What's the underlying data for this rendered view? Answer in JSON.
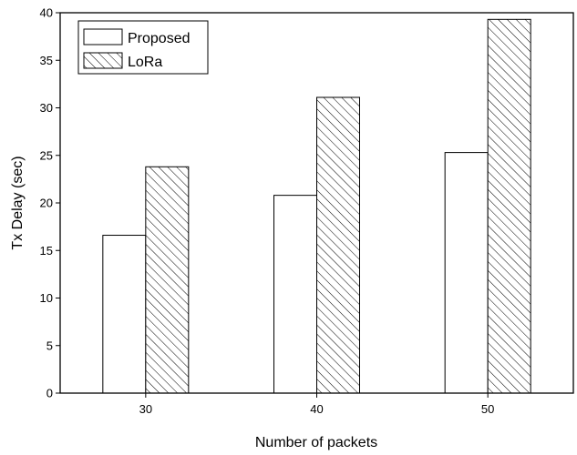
{
  "chart_data": {
    "type": "bar",
    "xlabel": "Number of packets",
    "ylabel": "Tx Delay (sec)",
    "categories": [
      "30",
      "40",
      "50"
    ],
    "ylim": [
      0,
      40
    ],
    "yticks": [
      "0",
      "5",
      "10",
      "15",
      "20",
      "25",
      "30",
      "35",
      "40"
    ],
    "grid": false,
    "legend_position": "top-left",
    "series": [
      {
        "name": "Proposed",
        "values": [
          16.6,
          20.8,
          25.3
        ],
        "fill": "white"
      },
      {
        "name": "LoRa",
        "values": [
          23.8,
          31.1,
          39.3
        ],
        "fill": "hatched"
      }
    ],
    "colors": {
      "stroke": "#000000",
      "background": "#ffffff"
    }
  }
}
